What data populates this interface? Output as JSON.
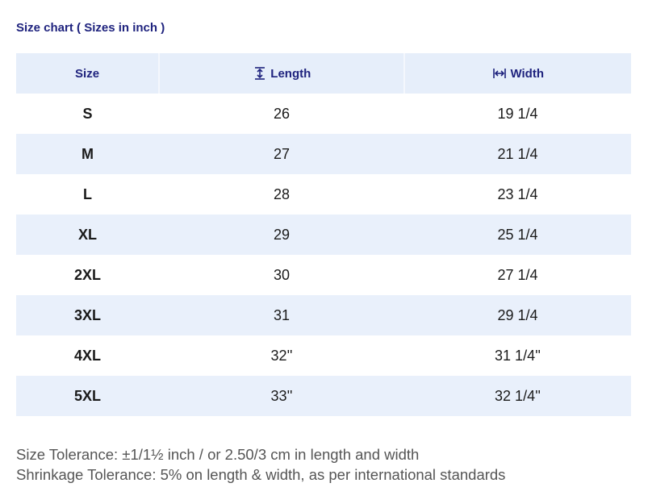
{
  "title": "Size chart ( Sizes in inch )",
  "table": {
    "headers": {
      "size": "Size",
      "length": "Length",
      "width": "Width",
      "length_icon": "vertical-measure-icon",
      "width_icon": "horizontal-measure-icon"
    },
    "rows": [
      {
        "size": "S",
        "length": "26",
        "width": "19 1/4"
      },
      {
        "size": "M",
        "length": "27",
        "width": "21 1/4"
      },
      {
        "size": "L",
        "length": "28",
        "width": "23 1/4"
      },
      {
        "size": "XL",
        "length": "29",
        "width": "25 1/4"
      },
      {
        "size": "2XL",
        "length": "30",
        "width": "27 1/4"
      },
      {
        "size": "3XL",
        "length": "31",
        "width": "29 1/4"
      },
      {
        "size": "4XL",
        "length": "32''",
        "width": "31 1/4''"
      },
      {
        "size": "5XL",
        "length": "33''",
        "width": "32 1/4''"
      }
    ]
  },
  "notes": {
    "size_tolerance": "Size Tolerance: ±1/1½ inch / or 2.50/3 cm in length and width",
    "shrinkage_tolerance": "Shrinkage Tolerance: 5% on length & width, as per international standards"
  },
  "colors": {
    "heading": "#1f237e",
    "row_shade": "#e9f0fb",
    "note_text": "#555555"
  }
}
